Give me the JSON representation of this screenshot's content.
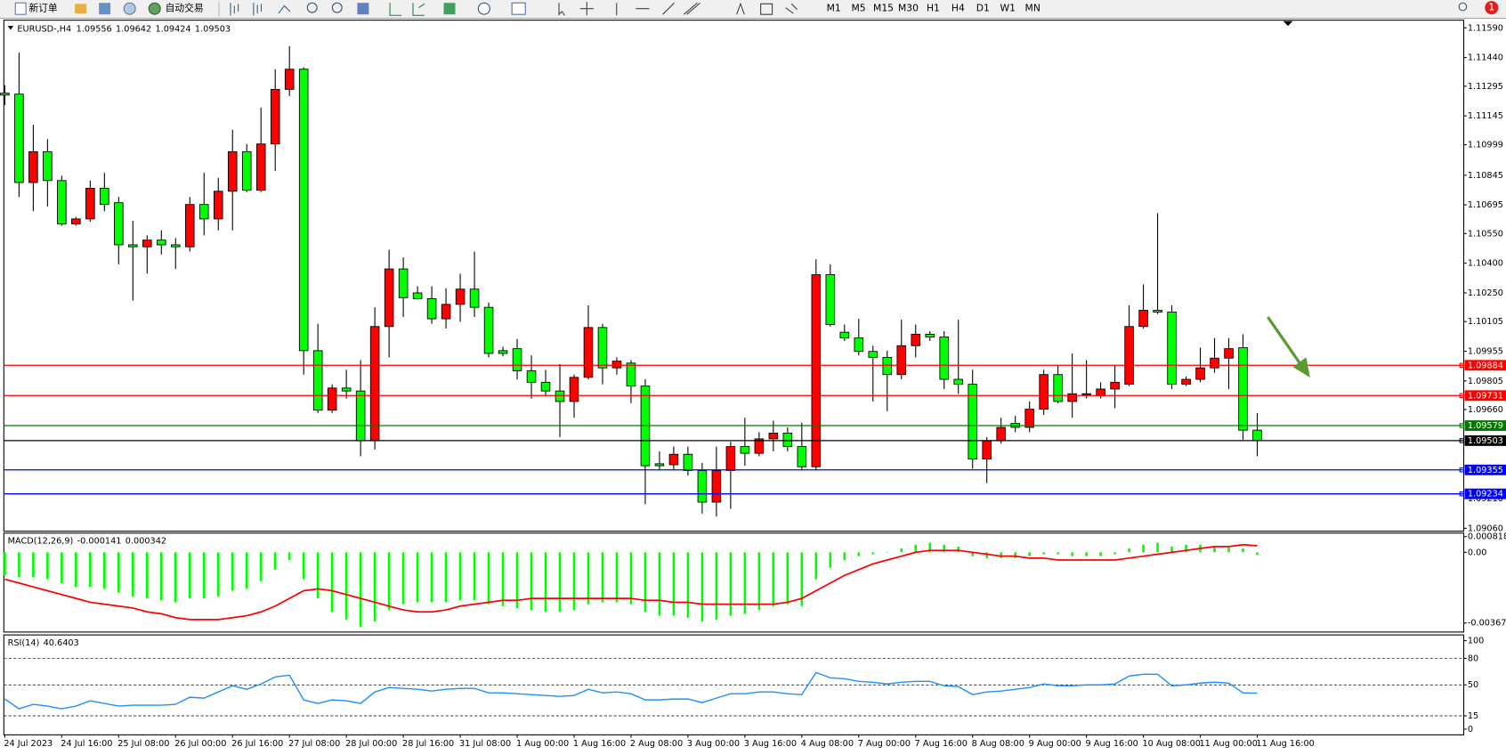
{
  "toolbar": {
    "new_order": "新订单",
    "auto_trading": "自动交易",
    "timeframes": [
      "M1",
      "M5",
      "M15",
      "M30",
      "H1",
      "H4",
      "D1",
      "W1",
      "MN"
    ],
    "alerts": "1"
  },
  "chart_data": [
    {
      "type": "candlestick",
      "title": "EURUSD-,H4",
      "up_color": "#ff0000",
      "down_color": "#00ff00",
      "x": [
        "24 Jul 2023",
        null,
        null,
        null,
        "24 Jul 16:00",
        null,
        null,
        null,
        "25 Jul 08:00",
        null,
        null,
        null,
        "26 Jul 00:00",
        null,
        null,
        null,
        "26 Jul 16:00",
        null,
        null,
        null,
        "27 Jul 08:00",
        null,
        null,
        null,
        "28 Jul 00:00",
        null,
        null,
        null,
        "28 Jul 16:00",
        null,
        null,
        null,
        "31 Jul 08:00",
        null,
        null,
        null,
        "1 Aug 00:00",
        null,
        null,
        null,
        "1 Aug 16:00",
        null,
        null,
        null,
        "2 Aug 08:00",
        null,
        null,
        null,
        "3 Aug 00:00",
        null,
        null,
        null,
        "3 Aug 16:00",
        null,
        null,
        null,
        "4 Aug 08:00",
        null,
        null,
        null,
        "7 Aug 00:00",
        null,
        null,
        null,
        "7 Aug 16:00",
        null,
        null,
        null,
        "8 Aug 08:00",
        null,
        null,
        null,
        "9 Aug 00:00",
        null,
        null,
        null,
        "9 Aug 16:00",
        null,
        null,
        null,
        "10 Aug 08:00",
        null,
        null,
        null,
        "11 Aug 00:00",
        null,
        null,
        null,
        "11 Aug 16:00"
      ],
      "open": [
        1.1126,
        1.11255,
        1.10808,
        1.10964,
        1.10818,
        1.10599,
        1.10624,
        1.10779,
        1.10706,
        1.10493,
        1.10483,
        1.10517,
        1.10493,
        1.10483,
        1.10697,
        1.10624,
        1.10764,
        1.10964,
        1.10769,
        1.11003,
        1.11279,
        1.11381,
        1.09958,
        1.09657,
        1.09769,
        1.09754,
        1.09502,
        1.1008,
        1.10371,
        1.1025,
        1.10221,
        1.10119,
        1.10192,
        1.10269,
        1.10177,
        1.09958,
        1.09968,
        1.09856,
        1.09798,
        1.09754,
        1.09701,
        1.09823,
        1.10075,
        1.09871,
        1.09895,
        1.09779,
        1.09386,
        1.09381,
        1.09434,
        1.09352,
        1.09192,
        1.09352,
        1.09473,
        1.09439,
        1.09512,
        1.09541,
        1.09473,
        1.09371,
        1.10342,
        1.10051,
        1.10022,
        1.09954,
        1.09924,
        1.09837,
        1.09983,
        1.10041,
        1.10027,
        1.09813,
        1.09788,
        1.0941,
        1.09502,
        1.0959,
        1.0957,
        1.09662,
        1.09837,
        1.09701,
        1.0974,
        1.0973,
        1.09764,
        1.09788,
        1.1008,
        1.10162,
        1.10153,
        1.09788,
        1.09813,
        1.09871,
        1.0992,
        1.09973,
        1.09556
      ],
      "high": [
        1.113,
        1.11464,
        1.111,
        1.11027,
        1.10842,
        1.10634,
        1.10818,
        1.10857,
        1.10735,
        1.10614,
        1.10541,
        1.10566,
        1.10527,
        1.10735,
        1.10857,
        1.10832,
        1.11075,
        1.11003,
        1.11187,
        1.11381,
        1.11498,
        1.11391,
        1.10094,
        1.09788,
        1.09861,
        1.0991,
        1.10177,
        1.10468,
        1.10429,
        1.10284,
        1.10284,
        1.10274,
        1.10347,
        1.10459,
        1.10201,
        1.09978,
        1.10017,
        1.09934,
        1.09861,
        1.0989,
        1.09837,
        1.10187,
        1.10094,
        1.09924,
        1.0991,
        1.09813,
        1.09449,
        1.09473,
        1.09473,
        1.09391,
        1.09473,
        1.09497,
        1.09619,
        1.09546,
        1.09604,
        1.0957,
        1.09594,
        1.1042,
        1.10395,
        1.1009,
        1.10119,
        1.09983,
        1.09958,
        1.10114,
        1.1009,
        1.10056,
        1.10056,
        1.10114,
        1.09861,
        1.09521,
        1.09619,
        1.09628,
        1.09701,
        1.09861,
        1.09886,
        1.09944,
        1.0991,
        1.09798,
        1.09886,
        1.10187,
        1.10293,
        1.10653,
        1.10187,
        1.09827,
        1.09973,
        1.10022,
        1.10022,
        1.10041,
        1.09642
      ],
      "low": [
        1.112,
        1.10735,
        1.10663,
        1.10687,
        1.1059,
        1.1059,
        1.1061,
        1.10663,
        1.10395,
        1.10211,
        1.10347,
        1.10444,
        1.10371,
        1.10459,
        1.10541,
        1.10566,
        1.10566,
        1.1076,
        1.1076,
        1.10866,
        1.11245,
        1.09837,
        1.09643,
        1.09643,
        1.09716,
        1.09424,
        1.09458,
        1.09924,
        1.10128,
        1.10216,
        1.10094,
        1.1007,
        1.10104,
        1.10128,
        1.09924,
        1.09929,
        1.09812,
        1.09716,
        1.0973,
        1.09521,
        1.09619,
        1.09813,
        1.09788,
        1.09837,
        1.09692,
        1.09182,
        1.09352,
        1.09352,
        1.09327,
        1.09134,
        1.09119,
        1.09158,
        1.09376,
        1.09424,
        1.09449,
        1.09449,
        1.09352,
        1.09352,
        1.1008,
        1.10007,
        1.09934,
        1.09701,
        1.09652,
        1.09813,
        1.09924,
        1.10007,
        1.09764,
        1.0974,
        1.09361,
        1.09288,
        1.09488,
        1.09546,
        1.09546,
        1.09633,
        1.09691,
        1.09619,
        1.09716,
        1.09716,
        1.09667,
        1.09779,
        1.1007,
        1.10143,
        1.09764,
        1.09779,
        1.09798,
        1.09846,
        1.09764,
        1.09507,
        1.09424
      ],
      "close": [
        1.1125,
        1.10808,
        1.10964,
        1.10818,
        1.10599,
        1.10624,
        1.10779,
        1.10697,
        1.10493,
        1.10483,
        1.10517,
        1.10493,
        1.10483,
        1.10697,
        1.10624,
        1.10764,
        1.10964,
        1.10769,
        1.11003,
        1.11279,
        1.11381,
        1.09958,
        1.09657,
        1.09769,
        1.09754,
        1.09502,
        1.1008,
        1.10371,
        1.10226,
        1.10221,
        1.10119,
        1.10192,
        1.10269,
        1.10177,
        1.09944,
        1.09944,
        1.09856,
        1.09798,
        1.09754,
        1.09701,
        1.09823,
        1.10075,
        1.09871,
        1.09905,
        1.09779,
        1.09376,
        1.09376,
        1.09434,
        1.09352,
        1.09192,
        1.09352,
        1.09473,
        1.09439,
        1.09512,
        1.09541,
        1.09473,
        1.09371,
        1.10342,
        1.1009,
        1.10022,
        1.09954,
        1.09924,
        1.09837,
        1.09983,
        1.10041,
        1.10027,
        1.09813,
        1.09788,
        1.0941,
        1.09502,
        1.0957,
        1.0957,
        1.09662,
        1.09837,
        1.09701,
        1.0974,
        1.0974,
        1.09764,
        1.09798,
        1.1008,
        1.10162,
        1.10153,
        1.09788,
        1.09813,
        1.09871,
        1.0992,
        1.09968,
        1.09556,
        1.09503
      ],
      "ylim": [
        1.0905,
        1.11624
      ],
      "yticks": [
        {
          "value": 1.1159,
          "label": "1.11590"
        },
        {
          "value": 1.1144,
          "label": "1.11440"
        },
        {
          "value": 1.11295,
          "label": "1.11295"
        },
        {
          "value": 1.11145,
          "label": "1.11145"
        },
        {
          "value": 1.10999,
          "label": "1.10999"
        },
        {
          "value": 1.10845,
          "label": "1.10845"
        },
        {
          "value": 1.10695,
          "label": "1.10695"
        },
        {
          "value": 1.1055,
          "label": "1.10550"
        },
        {
          "value": 1.104,
          "label": "1.10400"
        },
        {
          "value": 1.1025,
          "label": "1.10250"
        },
        {
          "value": 1.10105,
          "label": "1.10105"
        },
        {
          "value": 1.09955,
          "label": "1.09955"
        },
        {
          "value": 1.09805,
          "label": "1.09805"
        },
        {
          "value": 1.0966,
          "label": "1.09660"
        },
        {
          "value": 1.0921,
          "label": "1.09210"
        },
        {
          "value": 1.0906,
          "label": "1.09060"
        }
      ],
      "levels": [
        {
          "value": 1.09884,
          "color": "#ff0000"
        },
        {
          "value": 1.09731,
          "color": "#ff0000"
        },
        {
          "value": 1.09579,
          "color": "#007a00"
        },
        {
          "value": 1.09503,
          "color": "#000000"
        },
        {
          "value": 1.09355,
          "color": "#0000ff"
        },
        {
          "value": 1.09234,
          "color": "#0000ff"
        }
      ]
    },
    {
      "type": "macd",
      "title": "MACD(12,26,9)",
      "series": [
        {
          "type": "bar",
          "color": "#00ff00",
          "values": [
            -0.0012,
            -0.0013,
            -0.0013,
            -0.0014,
            -0.0016,
            -0.0018,
            -0.0018,
            -0.0019,
            -0.0021,
            -0.0023,
            -0.0024,
            -0.0025,
            -0.0026,
            -0.0024,
            -0.0024,
            -0.0023,
            -0.002,
            -0.0019,
            -0.0015,
            -0.0009,
            -0.0004,
            -0.0014,
            -0.0024,
            -0.0031,
            -0.0035,
            -0.0039,
            -0.0036,
            -0.003,
            -0.0027,
            -0.0026,
            -0.0026,
            -0.0026,
            -0.0025,
            -0.0025,
            -0.0027,
            -0.0028,
            -0.0029,
            -0.003,
            -0.0031,
            -0.0031,
            -0.003,
            -0.0027,
            -0.0026,
            -0.0026,
            -0.0027,
            -0.0031,
            -0.0033,
            -0.0033,
            -0.0034,
            -0.0036,
            -0.0035,
            -0.0033,
            -0.0032,
            -0.003,
            -0.0028,
            -0.0027,
            -0.0028,
            -0.0014,
            -0.0008,
            -0.0004,
            -0.0002,
            -0.0001,
            0,
            0.0002,
            0.0004,
            0.0005,
            0.0004,
            0.0003,
            -0.0002,
            -0.0003,
            -0.0003,
            -0.0003,
            -0.0002,
            -0.0001,
            -0.0001,
            -0.0002,
            -0.0002,
            -0.0002,
            -0.0001,
            0.0002,
            0.0004,
            0.0005,
            0.0003,
            0.0004,
            0.0004,
            0.0003,
            0.0003,
            0.0002,
            -0.000141
          ]
        },
        {
          "type": "line",
          "color": "#ff0000",
          "values": [
            -0.0014,
            -0.0016,
            -0.0018,
            -0.002,
            -0.0022,
            -0.0024,
            -0.0026,
            -0.0027,
            -0.0028,
            -0.0029,
            -0.0031,
            -0.0032,
            -0.0034,
            -0.0035,
            -0.0035,
            -0.0035,
            -0.0034,
            -0.0033,
            -0.0031,
            -0.0028,
            -0.0024,
            -0.002,
            -0.0019,
            -0.002,
            -0.0022,
            -0.0024,
            -0.0026,
            -0.0028,
            -0.003,
            -0.0031,
            -0.0031,
            -0.003,
            -0.0028,
            -0.0027,
            -0.0026,
            -0.0025,
            -0.0025,
            -0.0024,
            -0.0024,
            -0.0024,
            -0.0024,
            -0.0024,
            -0.0024,
            -0.0024,
            -0.0024,
            -0.0025,
            -0.0025,
            -0.0026,
            -0.0026,
            -0.0027,
            -0.0027,
            -0.0027,
            -0.0027,
            -0.0027,
            -0.0027,
            -0.0026,
            -0.0024,
            -0.002,
            -0.0016,
            -0.0012,
            -0.0009,
            -0.0006,
            -0.0004,
            -0.0002,
            0,
            0.0001,
            0.0001,
            0.0001,
            0,
            -0.0001,
            -0.0002,
            -0.0002,
            -0.0003,
            -0.0003,
            -0.0004,
            -0.0004,
            -0.0004,
            -0.0004,
            -0.0004,
            -0.0003,
            -0.0002,
            -0.0001,
            0,
            0.0001,
            0.0002,
            0.0003,
            0.0003,
            0.0004,
            0.000342
          ]
        }
      ],
      "ylim": [
        -0.00415,
        0.001
      ],
      "yticks": [
        0.000818,
        {
          "value": 0,
          "label": "0.00"
        },
        -0.003677
      ]
    },
    {
      "type": "rsi",
      "title": "RSI(14)",
      "color": "#1e90ff",
      "values": [
        34,
        23,
        28,
        26,
        23,
        26,
        32,
        29,
        26,
        27,
        27,
        27,
        28,
        36,
        35,
        42,
        49,
        45,
        51,
        59,
        61,
        33,
        29,
        33,
        32,
        29,
        42,
        47,
        46,
        45,
        43,
        45,
        46,
        46,
        41,
        41,
        40,
        39,
        38,
        37,
        38,
        45,
        41,
        42,
        40,
        33,
        33,
        34,
        34,
        30,
        35,
        40,
        40,
        42,
        42,
        40,
        39,
        64,
        58,
        57,
        54,
        53,
        51,
        53,
        54,
        54,
        49,
        48,
        39,
        42,
        43,
        45,
        47,
        51,
        49,
        49,
        50,
        50,
        51,
        60,
        62,
        62,
        49,
        50,
        52,
        53,
        52,
        41,
        40.6403
      ],
      "ylim": [
        -6.5,
        106.5
      ],
      "yticks": [
        100,
        80,
        50,
        15,
        0
      ],
      "levels": [
        80,
        50,
        15
      ]
    }
  ]
}
